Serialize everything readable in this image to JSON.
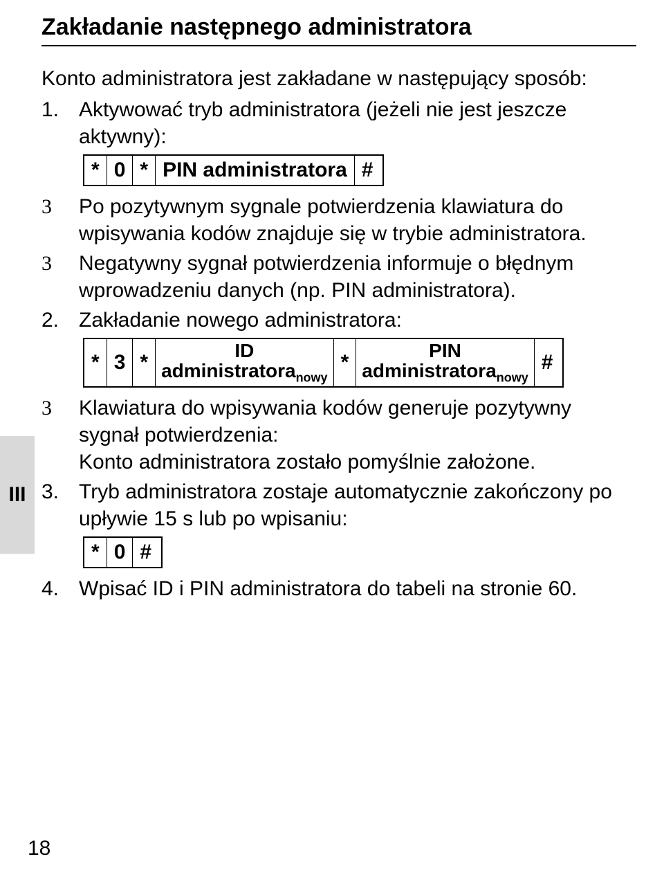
{
  "sideTab": "III",
  "title": "Zakładanie następnego administratora",
  "intro": "Konto administratora jest zakładane w następujący sposób:",
  "steps": {
    "s1": {
      "num": "1.",
      "text": "Aktywować tryb administratora (jeżeli nie jest jeszcze aktywny):",
      "code": {
        "c1": "*",
        "c2": "0",
        "c3": "*",
        "c4": "PIN administratora",
        "c5": "#"
      }
    },
    "s1a": {
      "marker": "3",
      "text": "Po pozytywnym sygnale potwierdzenia klawiatura do wpisywania kodów znajduje się w trybie administratora."
    },
    "s1b": {
      "marker": "3",
      "text": "Negatywny sygnał potwierdzenia informuje o błędnym wprowadzeniu danych (np. PIN administratora)."
    },
    "s2": {
      "num": "2.",
      "text": "Zakładanie nowego administratora:",
      "code": {
        "c1": "*",
        "c2": "3",
        "c3": "*",
        "id_l1": "ID",
        "id_l2a": "administratora",
        "id_l2b": "nowy",
        "c4": "*",
        "pin_l1": "PIN",
        "pin_l2a": "administratora",
        "pin_l2b": "nowy",
        "c5": "#"
      }
    },
    "s2a": {
      "marker": "3",
      "text": "Klawiatura do wpisywania kodów generuje pozytywny sygnał potwierdzenia:\nKonto administratora zostało pomyślnie założone."
    },
    "s3": {
      "num": "3.",
      "text": "Tryb administratora zostaje automatycznie zakończony po upływie 15 s lub po wpisaniu:",
      "code": {
        "c1": "*",
        "c2": "0",
        "c3": "#"
      }
    },
    "s4": {
      "num": "4.",
      "text": "Wpisać ID i PIN administratora do tabeli na stronie 60."
    }
  },
  "pageNumber": "18"
}
